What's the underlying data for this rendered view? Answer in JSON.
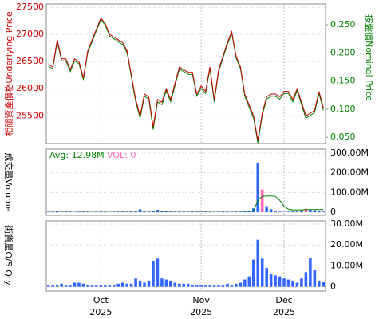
{
  "chart_data": [
    {
      "type": "line",
      "ylabel": "相關資產價格Underlying Price",
      "y2label": "按盤價Nominal Price",
      "ylim": [
        24990,
        27560
      ],
      "yticks": [
        25500,
        26000,
        26500,
        27000,
        27500
      ],
      "y2lim": [
        0.039,
        0.287
      ],
      "y2ticks": [
        {
          "value": 0.05,
          "label": "0.050"
        },
        {
          "value": 0.1,
          "label": "0.100"
        },
        {
          "value": 0.15,
          "label": "0.150"
        },
        {
          "value": 0.2,
          "label": "0.200"
        },
        {
          "value": 0.25,
          "label": "0.250"
        }
      ],
      "grid": true,
      "series": [
        {
          "color": "#cc0000",
          "values": [
            26450,
            26400,
            26900,
            26550,
            26550,
            26350,
            26550,
            26500,
            26200,
            26700,
            26900,
            27100,
            27300,
            27200,
            27000,
            26950,
            26900,
            26850,
            26700,
            26250,
            25800,
            25500,
            25900,
            25850,
            25300,
            25800,
            25750,
            26000,
            25800,
            26100,
            26400,
            26350,
            26300,
            26300,
            25900,
            26050,
            25950,
            26400,
            25800,
            26350,
            26600,
            26850,
            27050,
            26600,
            26400,
            25900,
            25700,
            25500,
            25050,
            25550,
            25850,
            25900,
            25900,
            25850,
            25950,
            25950,
            25800,
            26000,
            25750,
            25500,
            25550,
            25600,
            25950,
            25650
          ]
        },
        {
          "color": "#008000",
          "axis": "y2",
          "values": [
            0.176,
            0.172,
            0.22,
            0.186,
            0.186,
            0.167,
            0.186,
            0.181,
            0.152,
            0.201,
            0.22,
            0.24,
            0.259,
            0.25,
            0.23,
            0.225,
            0.22,
            0.215,
            0.201,
            0.157,
            0.113,
            0.084,
            0.123,
            0.118,
            0.064,
            0.113,
            0.108,
            0.133,
            0.113,
            0.142,
            0.172,
            0.167,
            0.162,
            0.162,
            0.123,
            0.137,
            0.128,
            0.172,
            0.113,
            0.167,
            0.191,
            0.215,
            0.235,
            0.191,
            0.172,
            0.123,
            0.103,
            0.084,
            0.04,
            0.089,
            0.118,
            0.123,
            0.123,
            0.118,
            0.128,
            0.128,
            0.113,
            0.133,
            0.108,
            0.084,
            0.089,
            0.094,
            0.128,
            0.098
          ]
        }
      ]
    },
    {
      "type": "bar",
      "ylabel": "成交量Volume",
      "avg_text": "Avg: 12.98M",
      "avg_color": "#008000",
      "vol_text": "VOL: 0",
      "vol_color": "#ff69b4",
      "ylim": [
        -16000000,
        320000000
      ],
      "yticks": [
        0,
        {
          "value": 100000000,
          "label": "100.00M"
        },
        {
          "value": 200000000,
          "label": "200.00M"
        },
        {
          "value": 300000000,
          "label": "300.00M"
        }
      ],
      "values": [
        3000000,
        2000000,
        4000000,
        2000000,
        3000000,
        2000000,
        1000000,
        2000000,
        3000000,
        2000000,
        1000000,
        2000000,
        3000000,
        2000000,
        1000000,
        2000000,
        2000000,
        3000000,
        2000000,
        4000000,
        3000000,
        15000000,
        3000000,
        2000000,
        5000000,
        12000000,
        4000000,
        6000000,
        3000000,
        2000000,
        3000000,
        2000000,
        2000000,
        3000000,
        2000000,
        2000000,
        3000000,
        2000000,
        1000000,
        2000000,
        3000000,
        2000000,
        2000000,
        3000000,
        2000000,
        5000000,
        8000000,
        20000000,
        250000000,
        115000000,
        30000000,
        15000000,
        5000000,
        3000000,
        2000000,
        3000000,
        4000000,
        5000000,
        12000000,
        18000000,
        14000000,
        10000000,
        6000000,
        3000000
      ],
      "colors": [
        "#3366ff",
        "#3366ff",
        "#3366ff",
        "#3366ff",
        "#3366ff",
        "#3366ff",
        "#3366ff",
        "#3366ff",
        "#3366ff",
        "#3366ff",
        "#3366ff",
        "#3366ff",
        "#3366ff",
        "#3366ff",
        "#3366ff",
        "#3366ff",
        "#3366ff",
        "#3366ff",
        "#3366ff",
        "#3366ff",
        "#3366ff",
        "#3366ff",
        "#3366ff",
        "#3366ff",
        "#3366ff",
        "#3366ff",
        "#3366ff",
        "#3366ff",
        "#3366ff",
        "#3366ff",
        "#3366ff",
        "#3366ff",
        "#3366ff",
        "#3366ff",
        "#3366ff",
        "#3366ff",
        "#3366ff",
        "#3366ff",
        "#3366ff",
        "#3366ff",
        "#3366ff",
        "#3366ff",
        "#3366ff",
        "#3366ff",
        "#3366ff",
        "#3366ff",
        "#3366ff",
        "#3366ff",
        "#3366ff",
        "#ff69b4",
        "#3366ff",
        "#3366ff",
        "#3366ff",
        "#3366ff",
        "#3366ff",
        "#3366ff",
        "#3366ff",
        "#3366ff",
        "#3366ff",
        "#ff69b4",
        "#3366ff",
        "#3366ff",
        "#3366ff",
        "#3366ff"
      ],
      "avg_values": [
        5000000,
        5000000,
        5000000,
        5000000,
        5000000,
        5000000,
        5000000,
        5000000,
        5000000,
        5000000,
        5000000,
        5000000,
        5000000,
        5000000,
        5000000,
        5000000,
        5000000,
        5000000,
        5000000,
        5000000,
        5000000,
        5000000,
        5000000,
        5000000,
        5000000,
        5000000,
        5000000,
        5000000,
        5000000,
        5000000,
        5000000,
        5000000,
        5000000,
        5000000,
        5000000,
        5000000,
        5000000,
        5000000,
        5000000,
        5000000,
        5000000,
        5000000,
        5000000,
        5000000,
        5000000,
        5000000,
        5000000,
        5000000,
        60000000,
        80000000,
        82000000,
        82000000,
        80000000,
        60000000,
        30000000,
        15000000,
        12000000,
        12000000,
        12000000,
        13000000,
        13000000,
        13000000,
        13000000,
        13000000
      ]
    },
    {
      "type": "bar",
      "ylabel": "街貨量O/S Qty.",
      "color": "#3366ff",
      "ylim": [
        -2000000,
        31500000
      ],
      "yticks": [
        0,
        {
          "value": 10000000,
          "label": "10.00M"
        },
        {
          "value": 20000000,
          "label": "20.00M"
        },
        {
          "value": 30000000,
          "label": "30.00M"
        }
      ],
      "values": [
        1000000,
        1000000,
        1000000,
        1500000,
        1000000,
        1000000,
        2000000,
        2000000,
        1500000,
        1000000,
        1000000,
        1000000,
        1000000,
        1000000,
        1000000,
        1000000,
        1500000,
        2000000,
        1500000,
        1500000,
        4000000,
        3000000,
        2000000,
        3000000,
        12500000,
        13500000,
        4000000,
        3500000,
        3000000,
        2000000,
        1500000,
        1500000,
        1500000,
        1000000,
        1000000,
        1000000,
        1000000,
        1000000,
        1000000,
        1000000,
        1000000,
        1500000,
        1000000,
        1500000,
        2000000,
        3500000,
        5000000,
        13000000,
        22500000,
        13500000,
        9000000,
        6000000,
        5500000,
        5000000,
        4000000,
        3500000,
        3000000,
        2000000,
        4000000,
        7000000,
        14000000,
        8000000,
        3000000,
        2500000
      ],
      "categories": [
        null,
        null,
        null,
        null,
        null,
        null,
        null,
        null,
        null,
        null,
        null,
        null,
        {
          "month": "Oct",
          "year": "2025"
        },
        null,
        null,
        null,
        null,
        null,
        null,
        null,
        null,
        null,
        null,
        null,
        null,
        null,
        null,
        null,
        null,
        null,
        null,
        null,
        null,
        null,
        null,
        {
          "month": "Nov",
          "year": "2025"
        },
        null,
        null,
        null,
        null,
        null,
        null,
        null,
        null,
        null,
        null,
        null,
        null,
        null,
        null,
        null,
        null,
        null,
        null,
        {
          "month": "Dec",
          "year": "2025"
        },
        null,
        null,
        null,
        null,
        null,
        null,
        null,
        null,
        null
      ]
    }
  ]
}
